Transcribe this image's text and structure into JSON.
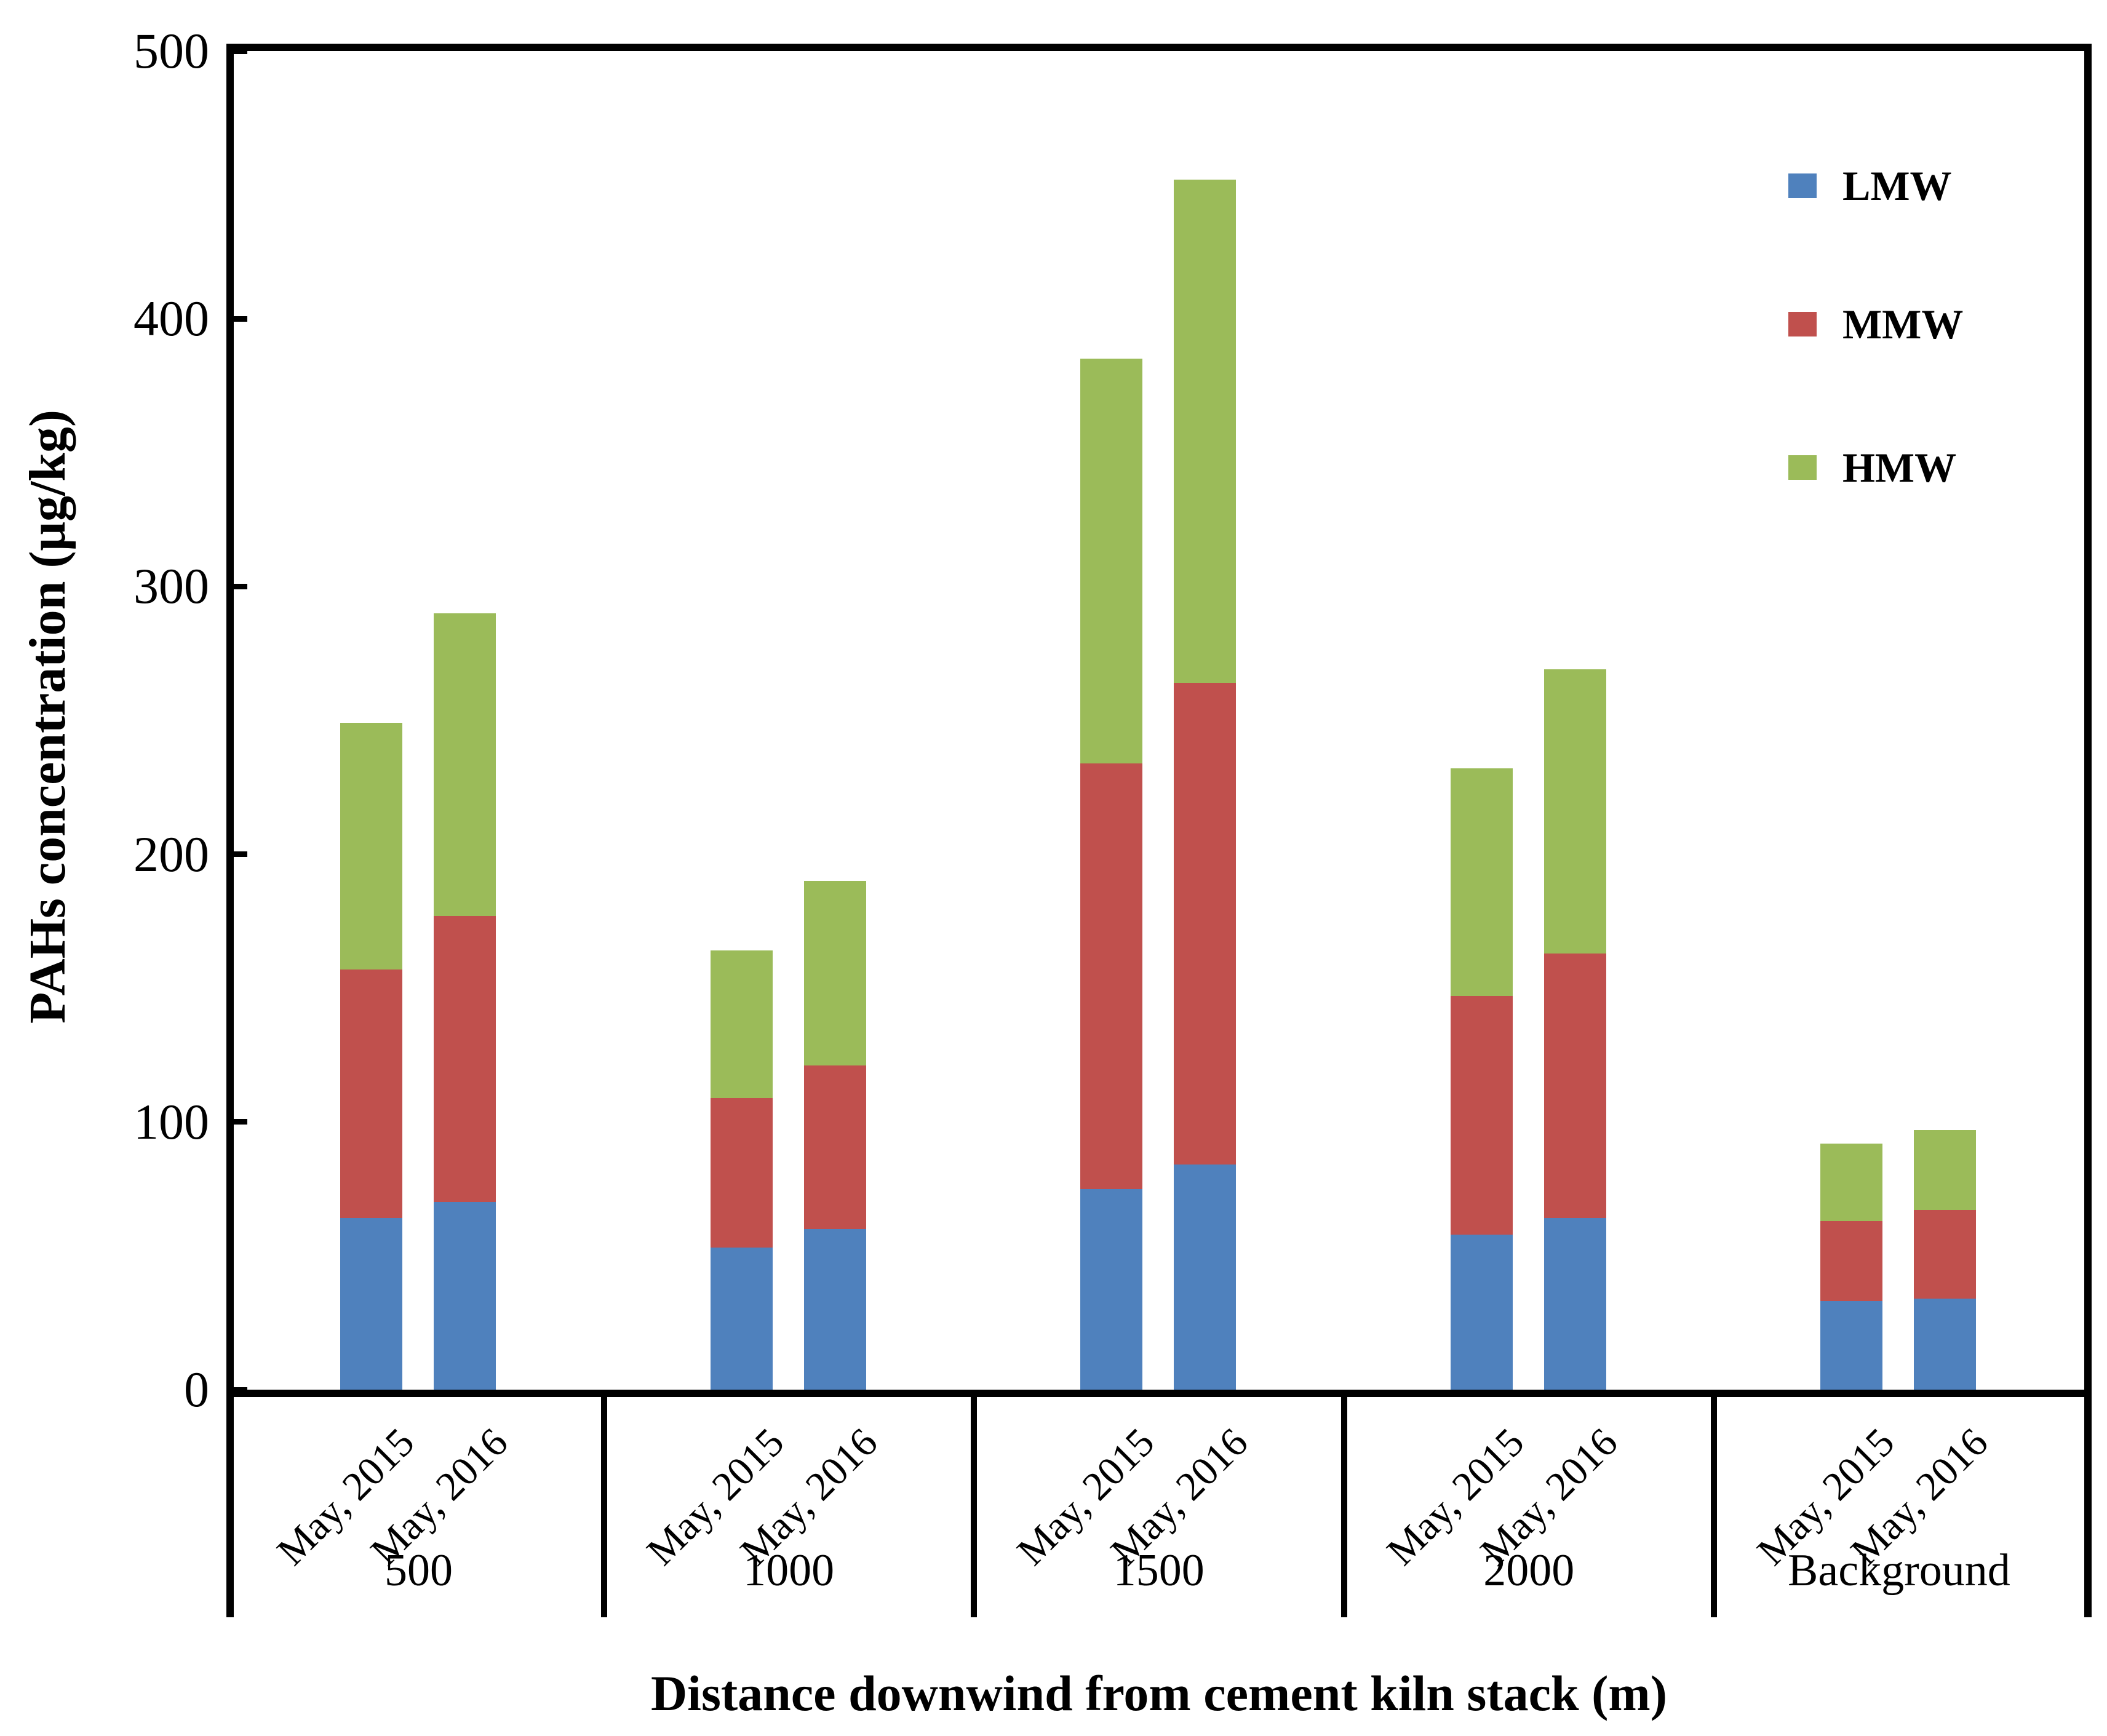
{
  "figure": {
    "background_color": "#ffffff",
    "axis_color": "#000000"
  },
  "chart_data": {
    "type": "bar",
    "stacked": true,
    "orientation": "vertical",
    "title": "",
    "xlabel": "Distance downwind from cement kiln stack (m)",
    "ylabel": "PAHs  concentration (μg/kg)",
    "ylim": [
      0,
      500
    ],
    "yticks": [
      0,
      100,
      200,
      300,
      400,
      500
    ],
    "grid": false,
    "legend_position": "top-right",
    "categories": [
      "500",
      "1000",
      "1500",
      "2000",
      "Background"
    ],
    "bar_labels": [
      "May, 2015",
      "May, 2016"
    ],
    "series": [
      {
        "name": "LMW",
        "color": "#4F81BD",
        "values": [
          [
            64,
            70
          ],
          [
            53,
            60
          ],
          [
            75,
            84
          ],
          [
            58,
            64
          ],
          [
            33,
            34
          ]
        ]
      },
      {
        "name": "MMW",
        "color": "#C0504D",
        "values": [
          [
            93,
            107
          ],
          [
            56,
            61
          ],
          [
            159,
            180
          ],
          [
            89,
            99
          ],
          [
            30,
            33
          ]
        ]
      },
      {
        "name": "HMW",
        "color": "#9BBB59",
        "values": [
          [
            92,
            113
          ],
          [
            55,
            69
          ],
          [
            151,
            188
          ],
          [
            85,
            106
          ],
          [
            29,
            30
          ]
        ]
      }
    ],
    "bar_totals": [
      [
        249,
        290
      ],
      [
        164,
        190
      ],
      [
        385,
        452
      ],
      [
        232,
        269
      ],
      [
        92,
        97
      ]
    ]
  }
}
